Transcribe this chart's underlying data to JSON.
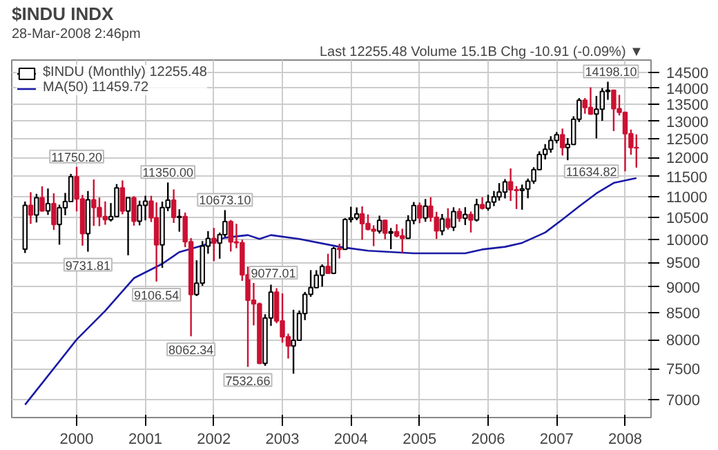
{
  "chart_data": {
    "type": "candlestick",
    "title": "$INDU INDX",
    "annotations": [
      "28-Mar-2008 2:46pm",
      "Last 12255.48  Volume 15.1B  Chg -10.91 (-0.09%) ▼",
      {
        "text": "11750.20",
        "x": "2000-01",
        "y": 11750.2
      },
      {
        "text": "9731.81",
        "x": "2000-03",
        "y": 9731.81
      },
      {
        "text": "11350.00",
        "x": "2001-05",
        "y": 11350.0
      },
      {
        "text": "9106.54",
        "x": "2001-03",
        "y": 9106.54
      },
      {
        "text": "8062.34",
        "x": "2001-09",
        "y": 8062.34
      },
      {
        "text": "10673.10",
        "x": "2002-03",
        "y": 10673.1
      },
      {
        "text": "9077.01",
        "x": "2002-08",
        "y": 9077.01
      },
      {
        "text": "7532.66",
        "x": "2002-07",
        "y": 7532.66
      },
      {
        "text": "14198.10",
        "x": "2007-10",
        "y": 14198.1
      },
      {
        "text": "11634.82",
        "x": "2008-01",
        "y": 11634.82
      }
    ],
    "series": [
      {
        "type": "candlestick",
        "name": "$INDU (Monthly) 12255.48",
        "x": [
          "1999-04",
          "1999-05",
          "1999-06",
          "1999-07",
          "1999-08",
          "1999-09",
          "1999-10",
          "1999-11",
          "1999-12",
          "2000-01",
          "2000-02",
          "2000-03",
          "2000-04",
          "2000-05",
          "2000-06",
          "2000-07",
          "2000-08",
          "2000-09",
          "2000-10",
          "2000-11",
          "2000-12",
          "2001-01",
          "2001-02",
          "2001-03",
          "2001-04",
          "2001-05",
          "2001-06",
          "2001-07",
          "2001-08",
          "2001-09",
          "2001-10",
          "2001-11",
          "2001-12",
          "2002-01",
          "2002-02",
          "2002-03",
          "2002-04",
          "2002-05",
          "2002-06",
          "2002-07",
          "2002-08",
          "2002-09",
          "2002-10",
          "2002-11",
          "2002-12",
          "2003-01",
          "2003-02",
          "2003-03",
          "2003-04",
          "2003-05",
          "2003-06",
          "2003-07",
          "2003-08",
          "2003-09",
          "2003-10",
          "2003-11",
          "2003-12",
          "2004-01",
          "2004-02",
          "2004-03",
          "2004-04",
          "2004-05",
          "2004-06",
          "2004-07",
          "2004-08",
          "2004-09",
          "2004-10",
          "2004-11",
          "2004-12",
          "2005-01",
          "2005-02",
          "2005-03",
          "2005-04",
          "2005-05",
          "2005-06",
          "2005-07",
          "2005-08",
          "2005-09",
          "2005-10",
          "2005-11",
          "2005-12",
          "2006-01",
          "2006-02",
          "2006-03",
          "2006-04",
          "2006-05",
          "2006-06",
          "2006-07",
          "2006-08",
          "2006-09",
          "2006-10",
          "2006-11",
          "2006-12",
          "2007-01",
          "2007-02",
          "2007-03",
          "2007-04",
          "2007-05",
          "2007-06",
          "2007-07",
          "2007-08",
          "2007-09",
          "2007-10",
          "2007-11",
          "2007-12",
          "2008-01",
          "2008-02",
          "2008-03"
        ],
        "ohlc": [
          [
            9786,
            10878,
            9703,
            10789
          ],
          [
            10789,
            11107,
            10353,
            10560
          ],
          [
            10560,
            11067,
            10385,
            10971
          ],
          [
            10971,
            11252,
            10637,
            10655
          ],
          [
            10655,
            11199,
            10561,
            10829
          ],
          [
            10829,
            11079,
            10213,
            10337
          ],
          [
            10337,
            10802,
            9884,
            10729
          ],
          [
            10729,
            11089,
            10553,
            10878
          ],
          [
            10878,
            11568,
            10871,
            11497
          ],
          [
            11497,
            11750.2,
            10643,
            10941
          ],
          [
            10941,
            11041,
            9862,
            10128
          ],
          [
            10128,
            11136,
            9731.81,
            10922
          ],
          [
            10922,
            11425,
            10305,
            10734
          ],
          [
            10734,
            10977,
            10299,
            10522
          ],
          [
            10522,
            10880,
            10332,
            10448
          ],
          [
            10448,
            10843,
            10407,
            10522
          ],
          [
            10522,
            11310,
            10521,
            11215
          ],
          [
            11215,
            11401,
            10574,
            10651
          ],
          [
            10651,
            10977,
            9654,
            10971
          ],
          [
            10971,
            11009,
            10311,
            10415
          ],
          [
            10415,
            10899,
            10318,
            10787
          ],
          [
            10787,
            11019,
            10434,
            10887
          ],
          [
            10887,
            11019,
            10395,
            10495
          ],
          [
            10495,
            10858,
            9106.54,
            9879
          ],
          [
            9879,
            10878,
            9389,
            10735
          ],
          [
            10735,
            11350.0,
            10650,
            10912
          ],
          [
            10912,
            11176,
            10373,
            10502
          ],
          [
            10502,
            10694,
            10174,
            10523
          ],
          [
            10523,
            10614,
            9830,
            9950
          ],
          [
            9950,
            10030,
            8062.34,
            8848
          ],
          [
            8848,
            9546,
            8818,
            9075
          ],
          [
            9075,
            9963,
            9020,
            9852
          ],
          [
            9852,
            10187,
            9688,
            10022
          ],
          [
            10022,
            10259,
            9529,
            9920
          ],
          [
            9920,
            10152,
            9581,
            10106
          ],
          [
            10106,
            10673.1,
            10057,
            10404
          ],
          [
            10404,
            10442,
            9734,
            9946
          ],
          [
            9946,
            10353,
            9806,
            9925
          ],
          [
            9925,
            9995,
            9120,
            9243
          ],
          [
            9243,
            9415,
            7532.66,
            8737
          ],
          [
            8737,
            9077.01,
            8261,
            8664
          ],
          [
            8664,
            8689,
            7582,
            7592
          ],
          [
            7592,
            8467,
            7550,
            8397
          ],
          [
            8397,
            9043,
            8251,
            8896
          ],
          [
            8896,
            8973,
            8302,
            8342
          ],
          [
            8342,
            8869,
            7948,
            8054
          ],
          [
            8054,
            8109,
            7673,
            7891
          ],
          [
            7891,
            8552,
            7420,
            7992
          ],
          [
            7992,
            8539,
            7987,
            8480
          ],
          [
            8480,
            8898,
            8359,
            8850
          ],
          [
            8850,
            9340,
            8803,
            8985
          ],
          [
            8985,
            9339,
            8976,
            9234
          ],
          [
            9234,
            9460,
            9002,
            9416
          ],
          [
            9416,
            9686,
            9275,
            9275
          ],
          [
            9275,
            9837,
            9257,
            9801
          ],
          [
            9801,
            9905,
            9586,
            9782
          ],
          [
            9782,
            10484,
            9782,
            10454
          ],
          [
            10454,
            10754,
            10384,
            10488
          ],
          [
            10488,
            10738,
            10436,
            10584
          ],
          [
            10584,
            10762,
            9993,
            10358
          ],
          [
            10358,
            10571,
            10203,
            10226
          ],
          [
            10226,
            10320,
            9852,
            10188
          ],
          [
            10188,
            10543,
            10132,
            10435
          ],
          [
            10435,
            10447,
            10003,
            10140
          ],
          [
            10140,
            10257,
            9785,
            10174
          ],
          [
            10174,
            10343,
            10046,
            10080
          ],
          [
            10080,
            10241,
            9708,
            10027
          ],
          [
            10027,
            10553,
            10014,
            10428
          ],
          [
            10428,
            10868,
            10342,
            10783
          ],
          [
            10783,
            10855,
            10368,
            10490
          ],
          [
            10490,
            10940,
            10402,
            10766
          ],
          [
            10766,
            10985,
            10402,
            10504
          ],
          [
            10504,
            10633,
            10012,
            10193
          ],
          [
            10193,
            10583,
            10094,
            10467
          ],
          [
            10467,
            10718,
            10222,
            10275
          ],
          [
            10275,
            10740,
            10190,
            10641
          ],
          [
            10641,
            10719,
            10400,
            10482
          ],
          [
            10482,
            10743,
            10325,
            10569
          ],
          [
            10569,
            10641,
            10156,
            10440
          ],
          [
            10440,
            10946,
            10406,
            10806
          ],
          [
            10806,
            10984,
            10688,
            10718
          ],
          [
            10718,
            11047,
            10661,
            10865
          ],
          [
            10865,
            11137,
            10768,
            10993
          ],
          [
            10993,
            11334,
            10902,
            11109
          ],
          [
            11109,
            11436,
            10955,
            11367
          ],
          [
            11367,
            11709,
            10893,
            11168
          ],
          [
            11168,
            11258,
            10699,
            11150
          ],
          [
            11150,
            11297,
            10683,
            11186
          ],
          [
            11186,
            11447,
            10959,
            11381
          ],
          [
            11381,
            11740,
            11316,
            11679
          ],
          [
            11679,
            12163,
            11670,
            12081
          ],
          [
            12081,
            12361,
            11946,
            12222
          ],
          [
            12222,
            12580,
            12127,
            12463
          ],
          [
            12463,
            12696,
            12383,
            12622
          ],
          [
            12622,
            12795,
            12050,
            12269
          ],
          [
            12269,
            12527,
            11926,
            12354
          ],
          [
            12354,
            13150,
            12334,
            13063
          ],
          [
            13063,
            13692,
            12983,
            13628
          ],
          [
            13628,
            13692,
            13226,
            13409
          ],
          [
            13409,
            14021,
            13194,
            13212
          ],
          [
            13212,
            13758,
            12518,
            13358
          ],
          [
            13358,
            14000,
            13016,
            13896
          ],
          [
            13896,
            14198.1,
            13640,
            13930
          ],
          [
            13930,
            13938,
            12724,
            13372
          ],
          [
            13372,
            13790,
            13174,
            13265
          ],
          [
            13265,
            13279,
            11634.82,
            12650
          ],
          [
            12650,
            12767,
            12070,
            12266
          ],
          [
            12266,
            12630,
            11731,
            12255.48
          ]
        ],
        "colors": [
          "#ffffff",
          "#cc1133",
          "#ffffff",
          "#cc1133",
          "#ffffff",
          "#cc1133",
          "#ffffff",
          "#ffffff",
          "#ffffff",
          "#cc1133",
          "#cc1133",
          "#ffffff",
          "#cc1133",
          "#cc1133",
          "#cc1133",
          "#ffffff",
          "#ffffff",
          "#cc1133",
          "#ffffff",
          "#cc1133",
          "#ffffff",
          "#ffffff",
          "#cc1133",
          "#cc1133",
          "#ffffff",
          "#ffffff",
          "#cc1133",
          "#ffffff",
          "#cc1133",
          "#cc1133",
          "#ffffff",
          "#ffffff",
          "#ffffff",
          "#cc1133",
          "#ffffff",
          "#ffffff",
          "#cc1133",
          "#cc1133",
          "#cc1133",
          "#cc1133",
          "#cc1133",
          "#cc1133",
          "#ffffff",
          "#ffffff",
          "#cc1133",
          "#cc1133",
          "#cc1133",
          "#ffffff",
          "#ffffff",
          "#ffffff",
          "#ffffff",
          "#ffffff",
          "#ffffff",
          "#cc1133",
          "#ffffff",
          "#cc1133",
          "#ffffff",
          "#ffffff",
          "#ffffff",
          "#cc1133",
          "#cc1133",
          "#cc1133",
          "#ffffff",
          "#cc1133",
          "#ffffff",
          "#cc1133",
          "#cc1133",
          "#ffffff",
          "#ffffff",
          "#cc1133",
          "#ffffff",
          "#cc1133",
          "#cc1133",
          "#ffffff",
          "#cc1133",
          "#ffffff",
          "#cc1133",
          "#ffffff",
          "#cc1133",
          "#ffffff",
          "#cc1133",
          "#ffffff",
          "#ffffff",
          "#ffffff",
          "#ffffff",
          "#cc1133",
          "#cc1133",
          "#ffffff",
          "#ffffff",
          "#ffffff",
          "#ffffff",
          "#ffffff",
          "#ffffff",
          "#ffffff",
          "#cc1133",
          "#ffffff",
          "#ffffff",
          "#ffffff",
          "#cc1133",
          "#cc1133",
          "#ffffff",
          "#ffffff",
          "#ffffff",
          "#cc1133",
          "#cc1133",
          "#cc1133",
          "#cc1133",
          "#ffff00"
        ]
      },
      {
        "type": "line",
        "name": "MA(50) 11459.72",
        "color": "#1a1aa6",
        "x": [
          "1999-04",
          "2000-01",
          "2000-06",
          "2000-11",
          "2001-04",
          "2001-07",
          "2001-11",
          "2002-03",
          "2002-07",
          "2002-09",
          "2002-11",
          "2003-04",
          "2003-11",
          "2004-04",
          "2004-12",
          "2005-09",
          "2005-12",
          "2006-04",
          "2006-07",
          "2006-11",
          "2007-02",
          "2007-05",
          "2007-08",
          "2007-11",
          "2008-03"
        ],
        "values": [
          6925,
          8005,
          8533,
          9175,
          9472,
          9723,
          9865,
          10039,
          10097,
          10010,
          10097,
          10010,
          9837,
          9752,
          9696,
          9696,
          9780,
          9837,
          9923,
          10155,
          10454,
          10762,
          11078,
          11338,
          11459.72
        ]
      }
    ],
    "xlim": [
      "1999-01-20",
      "2008-05-18"
    ],
    "xticks": [
      "2000",
      "2001",
      "2002",
      "2003",
      "2004",
      "2005",
      "2006",
      "2007",
      "2008"
    ],
    "ylim": [
      6730,
      14900
    ],
    "yticks": [
      7000,
      7500,
      8000,
      8500,
      9000,
      9500,
      10000,
      10500,
      11000,
      11500,
      12000,
      12500,
      13000,
      13500,
      14000,
      14500
    ],
    "log": "y",
    "grid": true,
    "legend": "top left"
  }
}
